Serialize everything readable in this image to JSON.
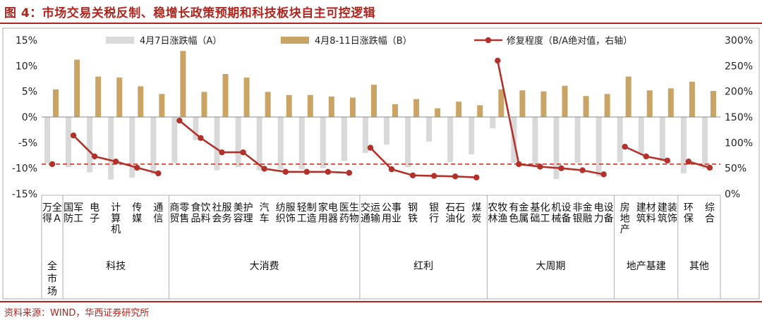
{
  "page": {
    "title": "图 4：市场交易关税反制、稳增长政策预期和科技板块自主可控逻辑",
    "source": "资料来源：WIND，华西证券研究所"
  },
  "colors": {
    "title_red": "#b0261f",
    "bar_a": "#d9d9d9",
    "bar_b": "#c9a464",
    "line": "#b3312b",
    "ref_line": "#c0392b"
  },
  "chart_data": {
    "type": "bar",
    "categories": [
      "万得全A",
      "国防军工",
      "电子",
      "计算机",
      "传媒",
      "通信",
      "商贸零售",
      "食品饮料",
      "社会服务",
      "美容护理",
      "汽车",
      "纺织服饰",
      "轻工制造",
      "家用电器",
      "医药生物",
      "交通运输",
      "公用事业",
      "钢铁",
      "银行",
      "石油石化",
      "煤炭",
      "农林牧渔",
      "有色金属",
      "基础化工",
      "机械设备",
      "非银金融",
      "电力设备",
      "房地产",
      "建筑材料",
      "建筑装饰",
      "环保",
      "综合"
    ],
    "groups": [
      {
        "label": "全市场",
        "count": 1
      },
      {
        "label": "科技",
        "count": 5
      },
      {
        "label": "大消费",
        "count": 9
      },
      {
        "label": "红利",
        "count": 6
      },
      {
        "label": "大周期",
        "count": 6
      },
      {
        "label": "地产基建",
        "count": 3
      },
      {
        "label": "其他",
        "count": 2
      }
    ],
    "series": [
      {
        "name": "4月7日涨跌幅（A）",
        "type": "bar",
        "axis": "left",
        "values": [
          -9.0,
          -9.8,
          -10.8,
          -12.2,
          -11.8,
          -11.2,
          -9.0,
          -4.5,
          -10.4,
          -9.8,
          -10.4,
          -10.2,
          -10.2,
          -10.0,
          -8.6,
          -7.0,
          -5.4,
          -9.8,
          -4.8,
          -8.8,
          -7.3,
          -2.2,
          -9.0,
          -9.7,
          -12.1,
          -9.0,
          -11.6,
          -8.8,
          -7.2,
          -8.7,
          -11.0,
          -10.1
        ]
      },
      {
        "name": "4月8-11日涨跌幅（B）",
        "type": "bar",
        "axis": "left",
        "values": [
          5.4,
          11.2,
          7.9,
          7.7,
          6.0,
          4.5,
          12.9,
          4.9,
          8.4,
          7.7,
          4.9,
          4.3,
          4.3,
          4.0,
          3.8,
          6.3,
          2.5,
          3.5,
          1.7,
          3.0,
          2.3,
          5.4,
          5.2,
          5.0,
          6.1,
          4.1,
          4.5,
          7.9,
          5.2,
          5.6,
          6.9,
          5.1
        ]
      },
      {
        "name": "修复程度（B/A绝对值，右轴）",
        "type": "line",
        "axis": "right",
        "values": [
          58,
          114,
          73,
          63,
          51,
          40,
          143,
          109,
          81,
          81,
          49,
          43,
          43,
          43,
          41,
          90,
          48,
          36,
          35,
          34,
          32,
          260,
          58,
          53,
          50,
          46,
          38,
          92,
          73,
          65,
          63,
          51
        ]
      }
    ],
    "reference_line": {
      "axis": "right",
      "value": 58
    },
    "y_left": {
      "min": -15,
      "max": 15,
      "ticks": [
        -15,
        -10,
        -5,
        0,
        5,
        10,
        15
      ],
      "tick_labels": [
        "-15%",
        "-10%",
        "-5%",
        "0%",
        "5%",
        "10%",
        "15%"
      ]
    },
    "y_right": {
      "min": 0,
      "max": 300,
      "ticks": [
        0,
        50,
        100,
        150,
        200,
        250,
        300
      ],
      "tick_labels": [
        "0%",
        "50%",
        "100%",
        "150%",
        "200%",
        "250%",
        "300%"
      ]
    },
    "legend_position": "top"
  }
}
